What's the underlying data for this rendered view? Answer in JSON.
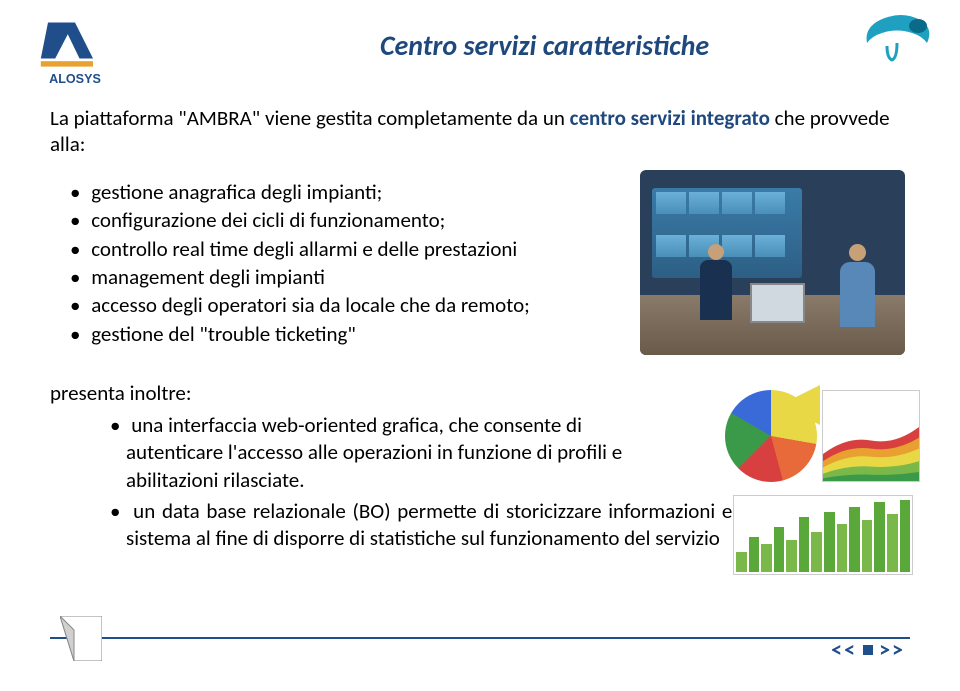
{
  "logo": {
    "brand": "ALOSYS"
  },
  "title": "Centro servizi caratteristiche",
  "intro": {
    "part1": "La piattaforma \"AMBRA\" viene gestita completamente da un ",
    "kw1": "centro servizi integrato",
    "part2": " che provvede alla:"
  },
  "bullets1": [
    "gestione anagrafica degli impianti;",
    "configurazione dei cicli di funzionamento;",
    "controllo real time degli allarmi e delle prestazioni",
    "management degli impianti",
    "accesso degli operatori sia da locale che da remoto;",
    "gestione del \"trouble ticketing\""
  ],
  "presenta": "presenta inoltre:",
  "bullets2": [
    "una interfaccia web-oriented grafica, che consente di autenticare l'accesso alle operazioni in funzione di profili e abilitazioni rilasciate.",
    "un data base relazionale (BO) permette di storicizzare informazioni ed i log di sistema al fine di disporre di statistiche sul funzionamento del servizio"
  ],
  "colors": {
    "title": "#1f497d",
    "footer_line": "#1f4e8a",
    "nav": "#1f4e8a",
    "logo_blue": "#1f4e8a",
    "logo_orange": "#e8a030"
  },
  "charts": {
    "pie_slices": [
      "#e8d845",
      "#e86a3a",
      "#d84040",
      "#3a9a4a",
      "#3a6ad8"
    ],
    "area_layers": [
      "#d84040",
      "#e8a030",
      "#e8d845",
      "#7ab84a",
      "#3a9a4a"
    ],
    "bar_heights": [
      20,
      35,
      28,
      45,
      32,
      55,
      40,
      60,
      48,
      65,
      52,
      70,
      58,
      72
    ],
    "bar_colors": [
      "#7ab84a",
      "#5aa83a"
    ]
  },
  "nav": {
    "prev": "<<",
    "next": ">>"
  }
}
